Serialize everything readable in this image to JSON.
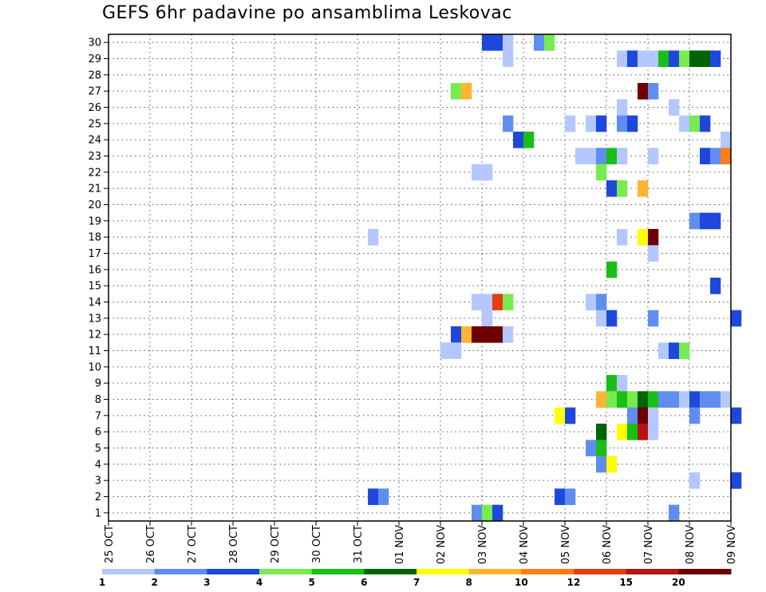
{
  "chart_data": {
    "type": "heatmap",
    "title": "GEFS 6hr padavine po ansamblima Leskovac",
    "x_ticks": [
      "25 OCT",
      "26 OCT",
      "27 OCT",
      "28 OCT",
      "29 OCT",
      "30 OCT",
      "31 OCT",
      "01 NOV",
      "02 NOV",
      "03 NOV",
      "04 NOV",
      "05 NOV",
      "06 NOV",
      "07 NOV",
      "08 NOV",
      "09 NOV"
    ],
    "y_ticks": [
      "1",
      "2",
      "3",
      "4",
      "5",
      "6",
      "7",
      "8",
      "9",
      "10",
      "11",
      "12",
      "13",
      "14",
      "15",
      "16",
      "17",
      "18",
      "19",
      "20",
      "21",
      "22",
      "23",
      "24",
      "25",
      "26",
      "27",
      "28",
      "29",
      "30"
    ],
    "ylim": [
      0.5,
      30.5
    ],
    "grid": true,
    "legend": {
      "placement": "bottom",
      "labels": [
        "1",
        "2",
        "3",
        "4",
        "5",
        "6",
        "7",
        "8",
        "10",
        "12",
        "15",
        "20"
      ],
      "colors": [
        "#b4c8ff",
        "#5f8ef0",
        "#1e48dc",
        "#78eb50",
        "#19be19",
        "#006400",
        "#ffff00",
        "#ffb432",
        "#ff7d14",
        "#e63c14",
        "#b41414",
        "#6e0000"
      ]
    },
    "colors": [
      "#ffffff",
      "#b4c8ff",
      "#5f8ef0",
      "#1e48dc",
      "#78eb50",
      "#19be19",
      "#006400",
      "#ffff00",
      "#ffb432",
      "#ff7d14",
      "#e63c14",
      "#b41414",
      "#6e0000"
    ],
    "cells": [
      [
        30,
        36,
        3
      ],
      [
        30,
        37,
        3
      ],
      [
        30,
        38,
        1
      ],
      [
        30,
        41,
        2
      ],
      [
        30,
        42,
        4
      ],
      [
        29,
        38,
        1
      ],
      [
        29,
        49,
        1
      ],
      [
        29,
        50,
        3
      ],
      [
        29,
        51,
        1
      ],
      [
        29,
        52,
        1
      ],
      [
        29,
        53,
        5
      ],
      [
        29,
        54,
        3
      ],
      [
        29,
        55,
        4
      ],
      [
        29,
        56,
        6
      ],
      [
        29,
        57,
        6
      ],
      [
        29,
        58,
        3
      ],
      [
        27,
        33,
        4
      ],
      [
        27,
        34,
        8
      ],
      [
        27,
        51,
        12
      ],
      [
        27,
        52,
        2
      ],
      [
        26,
        49,
        1
      ],
      [
        26,
        54,
        1
      ],
      [
        25,
        38,
        2
      ],
      [
        25,
        44,
        1
      ],
      [
        25,
        46,
        1
      ],
      [
        25,
        47,
        3
      ],
      [
        25,
        49,
        2
      ],
      [
        25,
        50,
        3
      ],
      [
        25,
        55,
        1
      ],
      [
        25,
        56,
        4
      ],
      [
        25,
        57,
        3
      ],
      [
        24,
        39,
        3
      ],
      [
        24,
        40,
        5
      ],
      [
        24,
        59,
        1
      ],
      [
        23,
        45,
        1
      ],
      [
        23,
        46,
        1
      ],
      [
        23,
        47,
        2
      ],
      [
        23,
        48,
        5
      ],
      [
        23,
        49,
        1
      ],
      [
        23,
        52,
        1
      ],
      [
        23,
        57,
        3
      ],
      [
        23,
        58,
        2
      ],
      [
        23,
        59,
        9
      ],
      [
        22,
        35,
        1
      ],
      [
        22,
        36,
        1
      ],
      [
        22,
        47,
        4
      ],
      [
        21,
        48,
        3
      ],
      [
        21,
        49,
        4
      ],
      [
        21,
        51,
        8
      ],
      [
        19,
        56,
        2
      ],
      [
        19,
        57,
        3
      ],
      [
        19,
        58,
        3
      ],
      [
        18,
        25,
        1
      ],
      [
        18,
        49,
        1
      ],
      [
        18,
        51,
        7
      ],
      [
        18,
        52,
        12
      ],
      [
        17,
        52,
        1
      ],
      [
        16,
        48,
        5
      ],
      [
        15,
        58,
        3
      ],
      [
        14,
        35,
        1
      ],
      [
        14,
        36,
        1
      ],
      [
        14,
        37,
        10
      ],
      [
        14,
        38,
        4
      ],
      [
        14,
        46,
        1
      ],
      [
        14,
        47,
        2
      ],
      [
        13,
        36,
        1
      ],
      [
        13,
        47,
        1
      ],
      [
        13,
        48,
        3
      ],
      [
        13,
        52,
        2
      ],
      [
        13,
        60,
        3
      ],
      [
        12,
        33,
        3
      ],
      [
        12,
        34,
        8
      ],
      [
        12,
        35,
        12
      ],
      [
        12,
        36,
        12
      ],
      [
        12,
        37,
        12
      ],
      [
        12,
        38,
        1
      ],
      [
        11,
        32,
        1
      ],
      [
        11,
        33,
        1
      ],
      [
        11,
        53,
        1
      ],
      [
        11,
        54,
        3
      ],
      [
        11,
        55,
        4
      ],
      [
        9,
        48,
        5
      ],
      [
        9,
        49,
        1
      ],
      [
        8,
        47,
        8
      ],
      [
        8,
        48,
        4
      ],
      [
        8,
        49,
        5
      ],
      [
        8,
        50,
        4
      ],
      [
        8,
        51,
        6
      ],
      [
        8,
        52,
        5
      ],
      [
        8,
        53,
        2
      ],
      [
        8,
        54,
        2
      ],
      [
        8,
        55,
        1
      ],
      [
        8,
        56,
        3
      ],
      [
        8,
        57,
        2
      ],
      [
        8,
        58,
        2
      ],
      [
        8,
        59,
        1
      ],
      [
        7,
        43,
        7
      ],
      [
        7,
        44,
        3
      ],
      [
        7,
        50,
        2
      ],
      [
        7,
        51,
        12
      ],
      [
        7,
        52,
        1
      ],
      [
        7,
        56,
        2
      ],
      [
        7,
        60,
        3
      ],
      [
        6,
        47,
        6
      ],
      [
        6,
        49,
        7
      ],
      [
        6,
        50,
        5
      ],
      [
        6,
        51,
        11
      ],
      [
        6,
        52,
        1
      ],
      [
        5,
        46,
        2
      ],
      [
        5,
        47,
        5
      ],
      [
        4,
        47,
        2
      ],
      [
        4,
        48,
        7
      ],
      [
        3,
        56,
        1
      ],
      [
        3,
        60,
        3
      ],
      [
        2,
        25,
        3
      ],
      [
        2,
        26,
        2
      ],
      [
        2,
        43,
        3
      ],
      [
        2,
        44,
        2
      ],
      [
        1,
        35,
        2
      ],
      [
        1,
        36,
        4
      ],
      [
        1,
        37,
        3
      ],
      [
        1,
        54,
        2
      ]
    ]
  }
}
